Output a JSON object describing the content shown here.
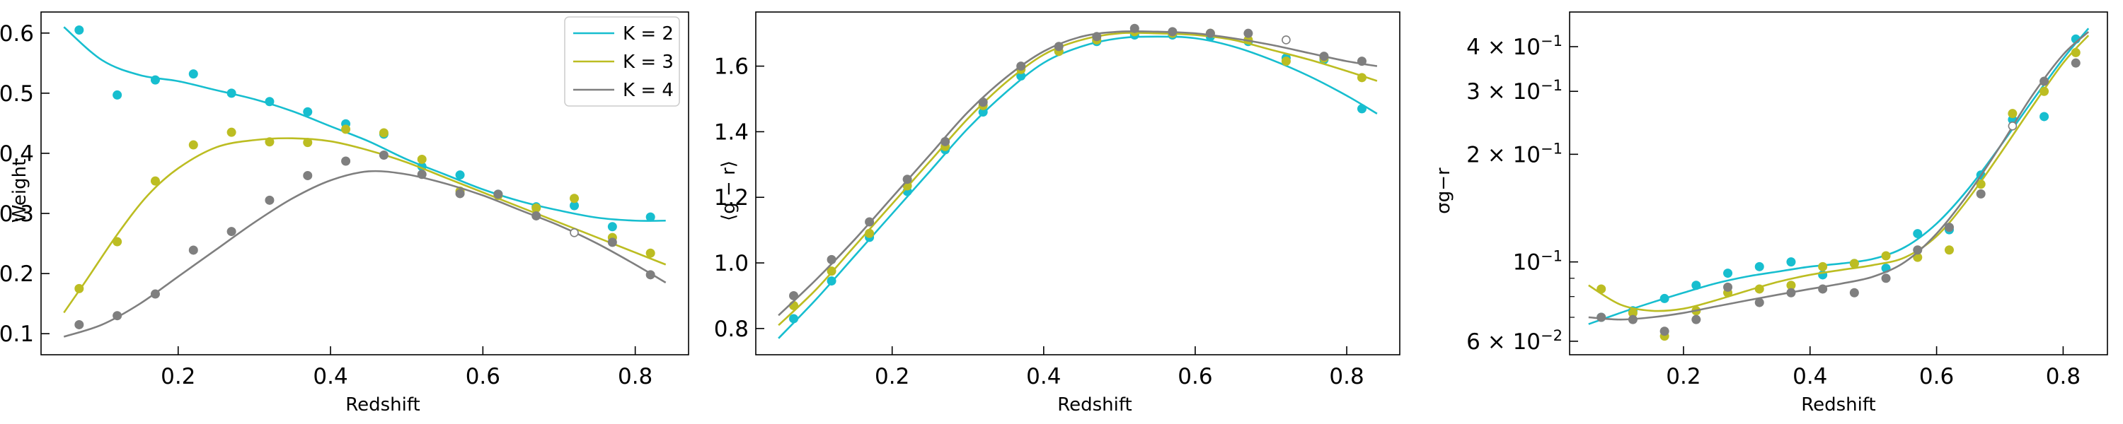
{
  "colors": {
    "K2": "#17becf",
    "K3": "#bcbd22",
    "K4": "#7f7f7f"
  },
  "chart_data": [
    {
      "type": "line",
      "panel": "weight",
      "xlabel": "Redshift",
      "ylabel": "Weight",
      "xlim": [
        0.02,
        0.87
      ],
      "ylim": [
        0.065,
        0.635
      ],
      "xticks": [
        0.2,
        0.4,
        0.6,
        0.8
      ],
      "xtick_labels": [
        "0.2",
        "0.4",
        "0.6",
        "0.8"
      ],
      "yticks": [
        0.1,
        0.2,
        0.3,
        0.4,
        0.5,
        0.6
      ],
      "ytick_labels": [
        "0.1",
        "0.2",
        "0.3",
        "0.4",
        "0.5",
        "0.6"
      ],
      "legend": {
        "position": "top-right",
        "entries": [
          "K = 2",
          "K = 3",
          "K = 4"
        ]
      },
      "series": [
        {
          "name": "K = 2",
          "color": "K2",
          "curve_x": [
            0.05,
            0.1,
            0.15,
            0.2,
            0.25,
            0.3,
            0.35,
            0.4,
            0.45,
            0.5,
            0.55,
            0.6,
            0.65,
            0.7,
            0.75,
            0.8,
            0.84
          ],
          "curve_y": [
            0.61,
            0.555,
            0.53,
            0.52,
            0.505,
            0.49,
            0.47,
            0.445,
            0.42,
            0.39,
            0.365,
            0.34,
            0.32,
            0.305,
            0.293,
            0.288,
            0.288
          ],
          "points_x": [
            0.07,
            0.12,
            0.17,
            0.22,
            0.27,
            0.32,
            0.37,
            0.42,
            0.47,
            0.52,
            0.57,
            0.62,
            0.67,
            0.72,
            0.77,
            0.82
          ],
          "points_y": [
            0.605,
            0.497,
            0.522,
            0.532,
            0.5,
            0.486,
            0.469,
            0.449,
            0.432,
            0.378,
            0.364,
            0.332,
            0.311,
            0.313,
            0.278,
            0.294
          ],
          "open_points": []
        },
        {
          "name": "K = 3",
          "color": "K3",
          "curve_x": [
            0.05,
            0.08,
            0.12,
            0.16,
            0.2,
            0.25,
            0.3,
            0.35,
            0.4,
            0.45,
            0.5,
            0.55,
            0.6,
            0.65,
            0.7,
            0.75,
            0.8,
            0.84
          ],
          "curve_y": [
            0.135,
            0.19,
            0.265,
            0.33,
            0.375,
            0.41,
            0.422,
            0.425,
            0.42,
            0.405,
            0.385,
            0.36,
            0.335,
            0.31,
            0.285,
            0.26,
            0.235,
            0.215
          ],
          "points_x": [
            0.07,
            0.12,
            0.17,
            0.22,
            0.27,
            0.32,
            0.37,
            0.42,
            0.47,
            0.52,
            0.57,
            0.62,
            0.67,
            0.72,
            0.77,
            0.82
          ],
          "points_y": [
            0.175,
            0.253,
            0.354,
            0.414,
            0.435,
            0.419,
            0.418,
            0.44,
            0.434,
            0.39,
            0.337,
            0.33,
            0.309,
            0.325,
            0.26,
            0.234
          ],
          "open_points": []
        },
        {
          "name": "K = 4",
          "color": "K4",
          "curve_x": [
            0.05,
            0.1,
            0.15,
            0.2,
            0.25,
            0.3,
            0.35,
            0.4,
            0.45,
            0.5,
            0.55,
            0.6,
            0.65,
            0.7,
            0.75,
            0.8,
            0.84
          ],
          "curve_y": [
            0.095,
            0.115,
            0.15,
            0.195,
            0.24,
            0.285,
            0.325,
            0.355,
            0.37,
            0.365,
            0.35,
            0.33,
            0.305,
            0.28,
            0.25,
            0.215,
            0.185
          ],
          "points_x": [
            0.07,
            0.12,
            0.17,
            0.22,
            0.27,
            0.32,
            0.37,
            0.42,
            0.47,
            0.52,
            0.57,
            0.62,
            0.67,
            0.72,
            0.77,
            0.82
          ],
          "points_y": [
            0.115,
            0.13,
            0.166,
            0.239,
            0.27,
            0.322,
            0.363,
            0.387,
            0.397,
            0.365,
            0.333,
            0.332,
            0.296,
            0.268,
            0.252,
            0.198
          ],
          "open_points": [
            13
          ]
        }
      ]
    },
    {
      "type": "line",
      "panel": "color-mean",
      "xlabel": "Redshift",
      "ylabel": "⟨g − r⟩",
      "xlim": [
        0.02,
        0.87
      ],
      "ylim": [
        0.72,
        1.765
      ],
      "xticks": [
        0.2,
        0.4,
        0.6,
        0.8
      ],
      "xtick_labels": [
        "0.2",
        "0.4",
        "0.6",
        "0.8"
      ],
      "yticks": [
        0.8,
        1.0,
        1.2,
        1.4,
        1.6
      ],
      "ytick_labels": [
        "0.8",
        "1.0",
        "1.2",
        "1.4",
        "1.6"
      ],
      "series": [
        {
          "name": "",
          "color": "K2",
          "curve_x": [
            0.05,
            0.1,
            0.15,
            0.2,
            0.25,
            0.3,
            0.35,
            0.4,
            0.45,
            0.5,
            0.55,
            0.6,
            0.65,
            0.7,
            0.75,
            0.8,
            0.84
          ],
          "curve_y": [
            0.77,
            0.89,
            1.02,
            1.15,
            1.28,
            1.41,
            1.52,
            1.61,
            1.66,
            1.685,
            1.69,
            1.685,
            1.66,
            1.62,
            1.57,
            1.51,
            1.455
          ],
          "points_x": [
            0.07,
            0.12,
            0.17,
            0.22,
            0.27,
            0.32,
            0.37,
            0.42,
            0.47,
            0.52,
            0.57,
            0.62,
            0.67,
            0.72,
            0.77,
            0.82
          ],
          "points_y": [
            0.83,
            0.945,
            1.078,
            1.218,
            1.345,
            1.46,
            1.57,
            1.645,
            1.675,
            1.695,
            1.695,
            1.69,
            1.675,
            1.625,
            1.62,
            1.47
          ],
          "open_points": []
        },
        {
          "name": "",
          "color": "K3",
          "curve_x": [
            0.05,
            0.1,
            0.15,
            0.2,
            0.25,
            0.3,
            0.35,
            0.4,
            0.45,
            0.5,
            0.55,
            0.6,
            0.65,
            0.7,
            0.75,
            0.8,
            0.84
          ],
          "curve_y": [
            0.81,
            0.92,
            1.05,
            1.18,
            1.31,
            1.44,
            1.55,
            1.635,
            1.68,
            1.7,
            1.7,
            1.695,
            1.68,
            1.65,
            1.62,
            1.585,
            1.555
          ],
          "points_x": [
            0.07,
            0.12,
            0.17,
            0.22,
            0.27,
            0.32,
            0.37,
            0.42,
            0.47,
            0.52,
            0.57,
            0.62,
            0.67,
            0.72,
            0.77,
            0.82
          ],
          "points_y": [
            0.87,
            0.975,
            1.09,
            1.235,
            1.355,
            1.48,
            1.59,
            1.645,
            1.68,
            1.705,
            1.7,
            1.7,
            1.68,
            1.615,
            1.625,
            1.565
          ],
          "open_points": []
        },
        {
          "name": "",
          "color": "K4",
          "curve_x": [
            0.05,
            0.1,
            0.15,
            0.2,
            0.25,
            0.3,
            0.35,
            0.4,
            0.45,
            0.5,
            0.55,
            0.6,
            0.65,
            0.7,
            0.75,
            0.8,
            0.84
          ],
          "curve_y": [
            0.84,
            0.95,
            1.07,
            1.2,
            1.33,
            1.46,
            1.565,
            1.645,
            1.69,
            1.705,
            1.705,
            1.7,
            1.685,
            1.665,
            1.64,
            1.615,
            1.6
          ],
          "points_x": [
            0.07,
            0.12,
            0.17,
            0.22,
            0.27,
            0.32,
            0.37,
            0.42,
            0.47,
            0.52,
            0.57,
            0.62,
            0.67,
            0.72,
            0.77,
            0.82
          ],
          "points_y": [
            0.9,
            1.01,
            1.125,
            1.255,
            1.37,
            1.49,
            1.6,
            1.66,
            1.69,
            1.715,
            1.705,
            1.7,
            1.7,
            1.68,
            1.63,
            1.615
          ],
          "open_points": [
            13
          ]
        }
      ]
    },
    {
      "type": "line",
      "panel": "color-scatter",
      "xlabel": "Redshift",
      "ylabel": "σg−r",
      "yscale": "log",
      "xlim": [
        0.02,
        0.87
      ],
      "ylim": [
        0.055,
        0.5
      ],
      "xticks": [
        0.2,
        0.4,
        0.6,
        0.8
      ],
      "xtick_labels": [
        "0.2",
        "0.4",
        "0.6",
        "0.8"
      ],
      "yticks": [
        0.06,
        0.1,
        0.2,
        0.3,
        0.4
      ],
      "ytick_labels": [
        "6 × 10⁻²",
        "10⁻¹",
        "2 × 10⁻¹",
        "3 × 10⁻¹",
        "4 × 10⁻¹"
      ],
      "series": [
        {
          "name": "",
          "color": "K2",
          "curve_x": [
            0.05,
            0.1,
            0.15,
            0.2,
            0.25,
            0.3,
            0.35,
            0.4,
            0.45,
            0.5,
            0.55,
            0.6,
            0.65,
            0.7,
            0.75,
            0.8,
            0.84
          ],
          "curve_y": [
            0.067,
            0.072,
            0.077,
            0.082,
            0.087,
            0.091,
            0.094,
            0.097,
            0.099,
            0.102,
            0.11,
            0.128,
            0.16,
            0.21,
            0.28,
            0.37,
            0.45
          ],
          "points_x": [
            0.07,
            0.12,
            0.17,
            0.22,
            0.27,
            0.32,
            0.37,
            0.42,
            0.47,
            0.52,
            0.57,
            0.62,
            0.67,
            0.72,
            0.77,
            0.82
          ],
          "points_y": [
            0.07,
            0.073,
            0.079,
            0.086,
            0.093,
            0.097,
            0.1,
            0.092,
            0.099,
            0.096,
            0.12,
            0.123,
            0.175,
            0.25,
            0.255,
            0.42
          ],
          "open_points": []
        },
        {
          "name": "",
          "color": "K3",
          "curve_x": [
            0.05,
            0.1,
            0.15,
            0.2,
            0.25,
            0.3,
            0.35,
            0.4,
            0.45,
            0.5,
            0.55,
            0.6,
            0.65,
            0.7,
            0.75,
            0.8,
            0.84
          ],
          "curve_y": [
            0.086,
            0.076,
            0.073,
            0.074,
            0.078,
            0.083,
            0.088,
            0.092,
            0.095,
            0.098,
            0.103,
            0.118,
            0.15,
            0.2,
            0.27,
            0.36,
            0.43
          ],
          "points_x": [
            0.07,
            0.12,
            0.17,
            0.22,
            0.27,
            0.32,
            0.37,
            0.42,
            0.47,
            0.52,
            0.57,
            0.62,
            0.67,
            0.72,
            0.77,
            0.82
          ],
          "points_y": [
            0.084,
            0.072,
            0.062,
            0.073,
            0.082,
            0.084,
            0.086,
            0.097,
            0.099,
            0.104,
            0.103,
            0.108,
            0.165,
            0.26,
            0.3,
            0.385
          ],
          "open_points": []
        },
        {
          "name": "",
          "color": "K4",
          "curve_x": [
            0.05,
            0.1,
            0.15,
            0.2,
            0.25,
            0.3,
            0.35,
            0.4,
            0.45,
            0.5,
            0.55,
            0.6,
            0.65,
            0.7,
            0.75,
            0.8,
            0.84
          ],
          "curve_y": [
            0.07,
            0.069,
            0.07,
            0.072,
            0.075,
            0.078,
            0.081,
            0.084,
            0.087,
            0.091,
            0.1,
            0.12,
            0.155,
            0.21,
            0.29,
            0.38,
            0.44
          ],
          "points_x": [
            0.07,
            0.12,
            0.17,
            0.22,
            0.27,
            0.32,
            0.37,
            0.42,
            0.47,
            0.52,
            0.57,
            0.62,
            0.67,
            0.72,
            0.77,
            0.82
          ],
          "points_y": [
            0.07,
            0.069,
            0.064,
            0.069,
            0.085,
            0.077,
            0.082,
            0.084,
            0.082,
            0.09,
            0.108,
            0.125,
            0.155,
            0.24,
            0.32,
            0.36
          ],
          "open_points": [
            13
          ]
        }
      ]
    }
  ]
}
